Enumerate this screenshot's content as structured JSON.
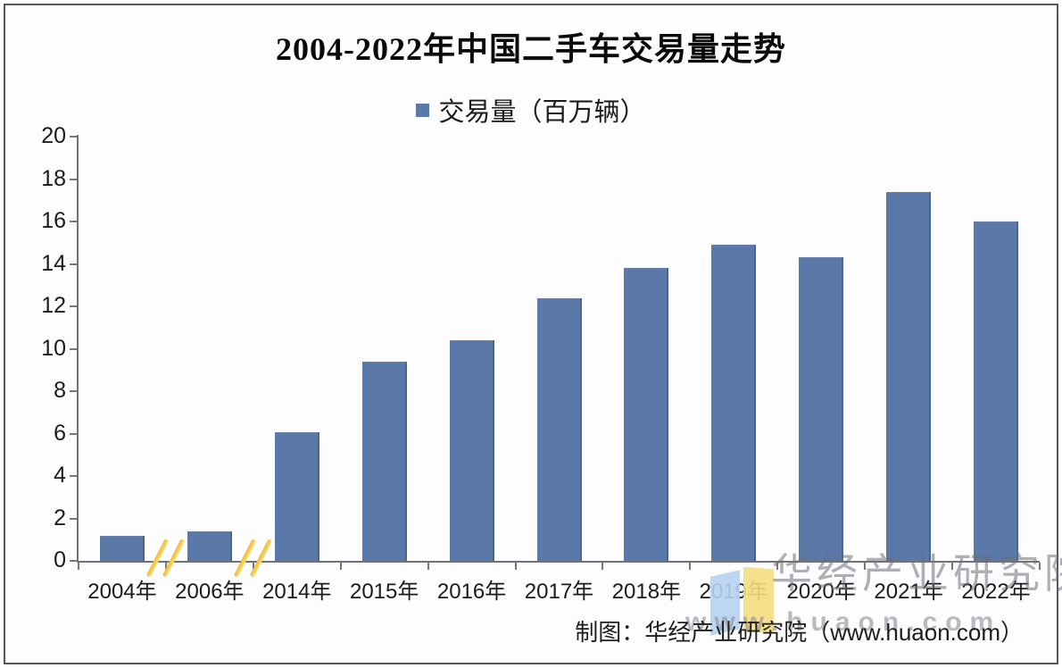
{
  "chart_data": {
    "type": "bar",
    "title": "2004-2022年中国二手车交易量走势",
    "legend_label": "交易量（百万辆）",
    "legend_position": "top",
    "categories": [
      "2004年",
      "2006年",
      "2014年",
      "2015年",
      "2016年",
      "2017年",
      "2018年",
      "2019年",
      "2020年",
      "2021年",
      "2022年"
    ],
    "values": [
      1.2,
      1.4,
      6.05,
      9.4,
      10.4,
      12.4,
      13.8,
      14.9,
      14.3,
      17.4,
      16.0
    ],
    "xlabel": "",
    "ylabel": "",
    "ylim": [
      0,
      20
    ],
    "yticks": [
      0,
      2,
      4,
      6,
      8,
      10,
      12,
      14,
      16,
      18,
      20
    ],
    "grid": false,
    "bar_color": "#5b79a8",
    "axis_break_after": [
      "2004年",
      "2006年"
    ],
    "axis_break_color": "#f0c33c"
  },
  "watermark": {
    "company": "华经产业研究院",
    "url": "www.huaon.com"
  },
  "caption": {
    "text": "制图：华经产业研究院（www.huaon.com）"
  }
}
